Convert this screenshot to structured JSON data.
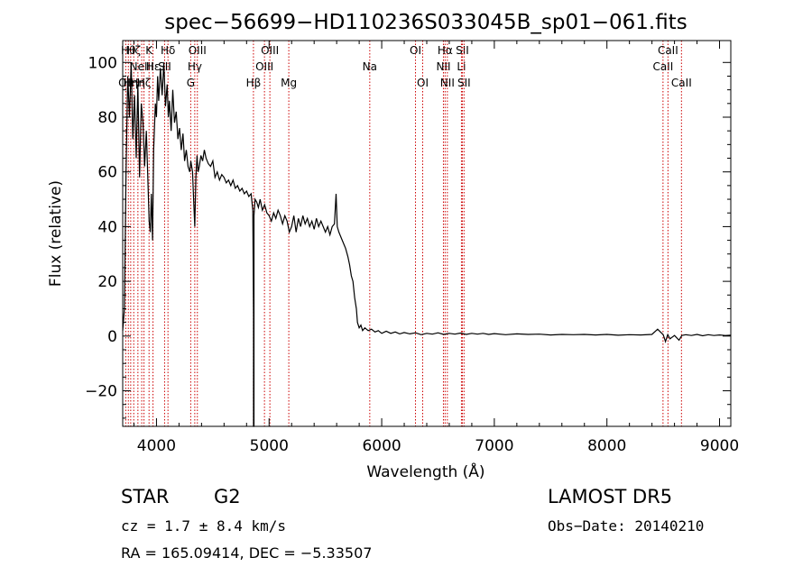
{
  "chart_data": {
    "type": "line",
    "title": "spec−56699−HD110236S033045B_sp01−061.fits",
    "xlabel": "Wavelength (Å)",
    "ylabel": "Flux (relative)",
    "xlim": [
      3700,
      9100
    ],
    "ylim": [
      -33,
      108
    ],
    "xticks": [
      4000,
      5000,
      6000,
      7000,
      8000,
      9000
    ],
    "yticks": [
      -20,
      0,
      20,
      40,
      60,
      80,
      100
    ],
    "grid": false,
    "series": [
      {
        "points": [
          [
            3700,
            2
          ],
          [
            3715,
            10
          ],
          [
            3730,
            60
          ],
          [
            3745,
            95
          ],
          [
            3760,
            80
          ],
          [
            3775,
            100
          ],
          [
            3790,
            72
          ],
          [
            3805,
            88
          ],
          [
            3820,
            65
          ],
          [
            3835,
            92
          ],
          [
            3850,
            58
          ],
          [
            3865,
            85
          ],
          [
            3880,
            78
          ],
          [
            3895,
            62
          ],
          [
            3910,
            75
          ],
          [
            3925,
            55
          ],
          [
            3935,
            42
          ],
          [
            3945,
            38
          ],
          [
            3955,
            52
          ],
          [
            3965,
            35
          ],
          [
            3975,
            68
          ],
          [
            3990,
            85
          ],
          [
            4000,
            80
          ],
          [
            4010,
            95
          ],
          [
            4020,
            86
          ],
          [
            4035,
            98
          ],
          [
            4050,
            88
          ],
          [
            4065,
            100
          ],
          [
            4080,
            84
          ],
          [
            4095,
            92
          ],
          [
            4105,
            80
          ],
          [
            4115,
            86
          ],
          [
            4130,
            75
          ],
          [
            4145,
            90
          ],
          [
            4160,
            78
          ],
          [
            4175,
            82
          ],
          [
            4190,
            72
          ],
          [
            4205,
            76
          ],
          [
            4220,
            68
          ],
          [
            4235,
            74
          ],
          [
            4250,
            64
          ],
          [
            4265,
            68
          ],
          [
            4280,
            62
          ],
          [
            4295,
            60
          ],
          [
            4305,
            64
          ],
          [
            4320,
            60
          ],
          [
            4330,
            50
          ],
          [
            4340,
            40
          ],
          [
            4350,
            58
          ],
          [
            4360,
            66
          ],
          [
            4370,
            60
          ],
          [
            4380,
            62
          ],
          [
            4395,
            66
          ],
          [
            4410,
            64
          ],
          [
            4425,
            68
          ],
          [
            4440,
            65
          ],
          [
            4460,
            63
          ],
          [
            4480,
            62
          ],
          [
            4500,
            64
          ],
          [
            4520,
            58
          ],
          [
            4540,
            60
          ],
          [
            4560,
            57
          ],
          [
            4580,
            59
          ],
          [
            4600,
            58
          ],
          [
            4620,
            56
          ],
          [
            4640,
            57
          ],
          [
            4660,
            55
          ],
          [
            4680,
            57
          ],
          [
            4700,
            54
          ],
          [
            4720,
            55
          ],
          [
            4740,
            53
          ],
          [
            4760,
            54
          ],
          [
            4780,
            52
          ],
          [
            4800,
            53
          ],
          [
            4820,
            51
          ],
          [
            4840,
            52
          ],
          [
            4855,
            46
          ],
          [
            4862,
            8
          ],
          [
            4862,
            -33
          ],
          [
            4866,
            -33
          ],
          [
            4866,
            44
          ],
          [
            4875,
            50
          ],
          [
            4890,
            49
          ],
          [
            4905,
            47
          ],
          [
            4920,
            50
          ],
          [
            4940,
            46
          ],
          [
            4960,
            48
          ],
          [
            4980,
            45
          ],
          [
            5000,
            44
          ],
          [
            5020,
            42
          ],
          [
            5040,
            45
          ],
          [
            5060,
            43
          ],
          [
            5080,
            46
          ],
          [
            5100,
            44
          ],
          [
            5120,
            41
          ],
          [
            5140,
            44
          ],
          [
            5160,
            42
          ],
          [
            5180,
            38
          ],
          [
            5200,
            40
          ],
          [
            5220,
            44
          ],
          [
            5240,
            38
          ],
          [
            5260,
            43
          ],
          [
            5280,
            40
          ],
          [
            5300,
            44
          ],
          [
            5320,
            41
          ],
          [
            5340,
            43
          ],
          [
            5360,
            40
          ],
          [
            5380,
            42
          ],
          [
            5400,
            39
          ],
          [
            5420,
            43
          ],
          [
            5440,
            40
          ],
          [
            5460,
            42
          ],
          [
            5480,
            40
          ],
          [
            5500,
            38
          ],
          [
            5520,
            40
          ],
          [
            5540,
            37
          ],
          [
            5560,
            40
          ],
          [
            5580,
            41
          ],
          [
            5595,
            52
          ],
          [
            5605,
            40
          ],
          [
            5620,
            38
          ],
          [
            5640,
            36
          ],
          [
            5660,
            34
          ],
          [
            5680,
            32
          ],
          [
            5700,
            29
          ],
          [
            5715,
            26
          ],
          [
            5730,
            22
          ],
          [
            5745,
            20
          ],
          [
            5760,
            14
          ],
          [
            5775,
            10
          ],
          [
            5785,
            5
          ],
          [
            5800,
            3
          ],
          [
            5815,
            4
          ],
          [
            5830,
            2
          ],
          [
            5850,
            3
          ],
          [
            5880,
            2
          ],
          [
            5910,
            2.5
          ],
          [
            5940,
            1.5
          ],
          [
            5970,
            2
          ],
          [
            6000,
            1
          ],
          [
            6040,
            1.8
          ],
          [
            6080,
            1
          ],
          [
            6120,
            1.5
          ],
          [
            6160,
            0.8
          ],
          [
            6200,
            1.3
          ],
          [
            6250,
            0.8
          ],
          [
            6300,
            1.2
          ],
          [
            6350,
            0.5
          ],
          [
            6400,
            1
          ],
          [
            6450,
            0.7
          ],
          [
            6500,
            1.2
          ],
          [
            6550,
            0.6
          ],
          [
            6600,
            1
          ],
          [
            6650,
            0.7
          ],
          [
            6700,
            1.1
          ],
          [
            6750,
            0.6
          ],
          [
            6800,
            1
          ],
          [
            6850,
            0.7
          ],
          [
            6900,
            1
          ],
          [
            6950,
            0.6
          ],
          [
            7000,
            0.9
          ],
          [
            7100,
            0.5
          ],
          [
            7200,
            0.8
          ],
          [
            7300,
            0.6
          ],
          [
            7400,
            0.7
          ],
          [
            7500,
            0.4
          ],
          [
            7600,
            0.6
          ],
          [
            7700,
            0.5
          ],
          [
            7800,
            0.6
          ],
          [
            7900,
            0.4
          ],
          [
            8000,
            0.6
          ],
          [
            8100,
            0.3
          ],
          [
            8200,
            0.5
          ],
          [
            8300,
            0.4
          ],
          [
            8400,
            0.6
          ],
          [
            8450,
            2.5
          ],
          [
            8500,
            0.5
          ],
          [
            8520,
            -2
          ],
          [
            8540,
            0.5
          ],
          [
            8560,
            -1
          ],
          [
            8600,
            0.2
          ],
          [
            8640,
            -1.5
          ],
          [
            8665,
            0.2
          ],
          [
            8700,
            0.5
          ],
          [
            8750,
            0.2
          ],
          [
            8800,
            0.6
          ],
          [
            8850,
            0.1
          ],
          [
            8900,
            0.5
          ],
          [
            8950,
            0.2
          ],
          [
            9000,
            0.4
          ],
          [
            9050,
            0.2
          ],
          [
            9100,
            0.3
          ]
        ]
      }
    ],
    "lines": [
      {
        "x": 3727,
        "label": "OII",
        "row": 2
      },
      {
        "x": 3750,
        "label": "Hθ",
        "row": 0
      },
      {
        "x": 3771,
        "label": "Hη",
        "row": 2
      },
      {
        "x": 3798,
        "label": "Hζ",
        "row": 0
      },
      {
        "x": 3835,
        "label": "Hη",
        "row": 2
      },
      {
        "x": 3869,
        "label": "NeIII",
        "row": 1
      },
      {
        "x": 3889,
        "label": "Hζ",
        "row": 2
      },
      {
        "x": 3934,
        "label": "K",
        "row": 0
      },
      {
        "x": 3969,
        "label": "Hε",
        "row": 1
      },
      {
        "x": 4072,
        "label": "SII",
        "row": 1
      },
      {
        "x": 4102,
        "label": "Hδ",
        "row": 0
      },
      {
        "x": 4304,
        "label": "G",
        "row": 2
      },
      {
        "x": 4340,
        "label": "Hγ",
        "row": 1
      },
      {
        "x": 4363,
        "label": "OIII",
        "row": 0
      },
      {
        "x": 4861,
        "label": "Hβ",
        "row": 2
      },
      {
        "x": 4959,
        "label": "OIII",
        "row": 1
      },
      {
        "x": 5007,
        "label": "OIII",
        "row": 0
      },
      {
        "x": 5175,
        "label": "Mg",
        "row": 2
      },
      {
        "x": 5894,
        "label": "Na",
        "row": 1
      },
      {
        "x": 6300,
        "label": "OI",
        "row": 0
      },
      {
        "x": 6364,
        "label": "OI",
        "row": 2
      },
      {
        "x": 6548,
        "label": "NII",
        "row": 1
      },
      {
        "x": 6563,
        "label": "Hα",
        "row": 0
      },
      {
        "x": 6583,
        "label": "NII",
        "row": 2
      },
      {
        "x": 6708,
        "label": "Li",
        "row": 1
      },
      {
        "x": 6716,
        "label": "SII",
        "row": 0
      },
      {
        "x": 6731,
        "label": "SII",
        "row": 2
      },
      {
        "x": 8498,
        "label": "CaII",
        "row": 1
      },
      {
        "x": 8542,
        "label": "CaII",
        "row": 0
      },
      {
        "x": 8662,
        "label": "CaII",
        "row": 2
      }
    ]
  },
  "info": {
    "object_class": "STAR",
    "subclass": "G2",
    "survey": "LAMOST DR5",
    "cz": "cz = 1.7 ± 8.4 km/s",
    "obs_date": "Obs−Date: 20140210",
    "coords": "RA = 165.09414, DEC =  −5.33507"
  },
  "colors": {
    "spectrum": "#000000",
    "line_markers": "#cc0000",
    "axes": "#000000"
  }
}
